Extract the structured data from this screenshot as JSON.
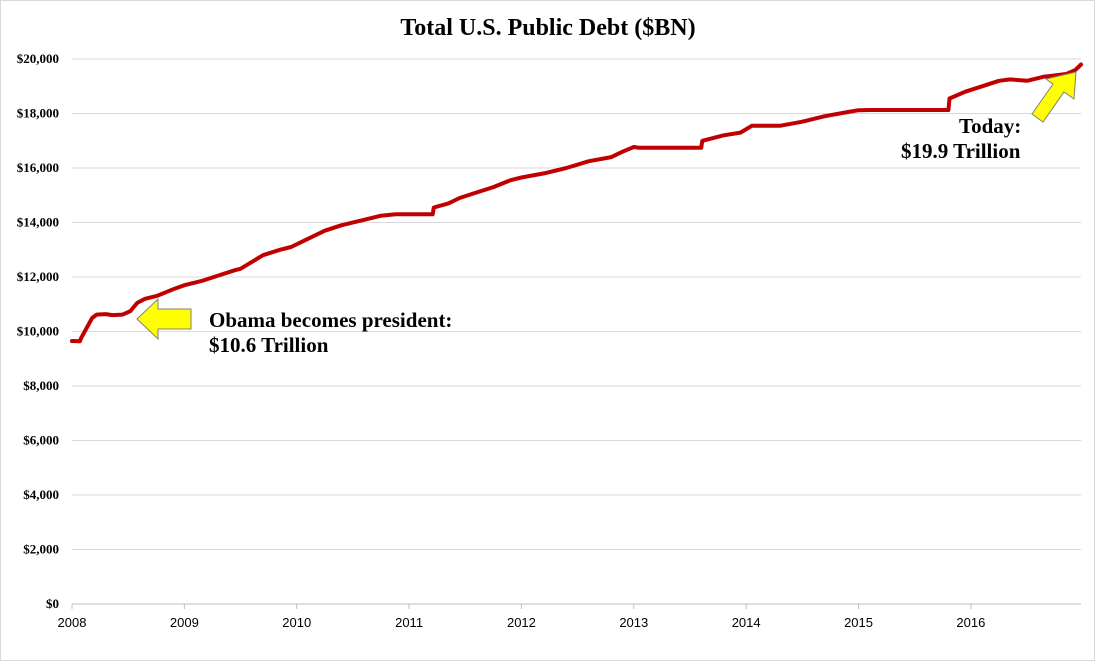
{
  "chart_data": {
    "type": "line",
    "title": "Total U.S. Public Debt ($BN)",
    "xlabel": "",
    "ylabel": "",
    "xlim": [
      2008.0,
      2016.98
    ],
    "ylim": [
      0,
      20000
    ],
    "y_ticks": [
      0,
      2000,
      4000,
      6000,
      8000,
      10000,
      12000,
      14000,
      16000,
      18000,
      20000
    ],
    "y_tick_labels": [
      "$0",
      "$2,000",
      "$4,000",
      "$6,000",
      "$8,000",
      "$10,000",
      "$12,000",
      "$14,000",
      "$16,000",
      "$18,000",
      "$20,000"
    ],
    "x_ticks": [
      2008,
      2009,
      2010,
      2011,
      2012,
      2013,
      2014,
      2015,
      2016
    ],
    "x_tick_labels": [
      "2008",
      "2009",
      "2010",
      "2011",
      "2012",
      "2013",
      "2014",
      "2015",
      "2016"
    ],
    "grid": "horizontal",
    "legend": "none",
    "line_color": "#c00000",
    "arrow_color": "#ffff00",
    "series": [
      {
        "x": [
          2008.0,
          2008.07,
          2008.08,
          2008.12,
          2008.18,
          2008.22,
          2008.3,
          2008.36,
          2008.45,
          2008.52,
          2008.58,
          2008.65,
          2008.75,
          2008.9,
          2009.0,
          2009.15,
          2009.3,
          2009.45,
          2009.5,
          2009.7,
          2009.85,
          2009.95,
          2010.1,
          2010.25,
          2010.4,
          2010.6,
          2010.75,
          2010.88,
          2010.94,
          2011.0,
          2011.21,
          2011.22,
          2011.35,
          2011.45,
          2011.6,
          2011.75,
          2011.9,
          2012.0,
          2012.2,
          2012.4,
          2012.6,
          2012.8,
          2012.9,
          2013.0,
          2013.05,
          2013.15,
          2013.6,
          2013.61,
          2013.8,
          2013.95,
          2014.05,
          2014.3,
          2014.5,
          2014.7,
          2014.9,
          2015.0,
          2015.1,
          2015.8,
          2015.81,
          2015.95,
          2016.1,
          2016.25,
          2016.35,
          2016.5,
          2016.65,
          2016.85,
          2016.93,
          2016.98
        ],
        "values": [
          9650,
          9640,
          9750,
          10050,
          10500,
          10620,
          10640,
          10600,
          10620,
          10750,
          11050,
          11200,
          11300,
          11550,
          11700,
          11850,
          12050,
          12250,
          12300,
          12800,
          13000,
          13100,
          13400,
          13700,
          13900,
          14100,
          14250,
          14300,
          14300,
          14300,
          14300,
          14550,
          14700,
          14900,
          15100,
          15300,
          15550,
          15650,
          15800,
          16000,
          16250,
          16400,
          16600,
          16770,
          16740,
          16740,
          16740,
          17000,
          17200,
          17300,
          17550,
          17550,
          17700,
          17900,
          18050,
          18120,
          18130,
          18130,
          18550,
          18800,
          19000,
          19200,
          19250,
          19200,
          19350,
          19450,
          19600,
          19800
        ]
      }
    ],
    "annotations": [
      {
        "lines": [
          "Obama becomes president:",
          "$10.6 Trillion"
        ]
      },
      {
        "lines": [
          "Today:",
          "$19.9 Trillion"
        ]
      }
    ]
  }
}
